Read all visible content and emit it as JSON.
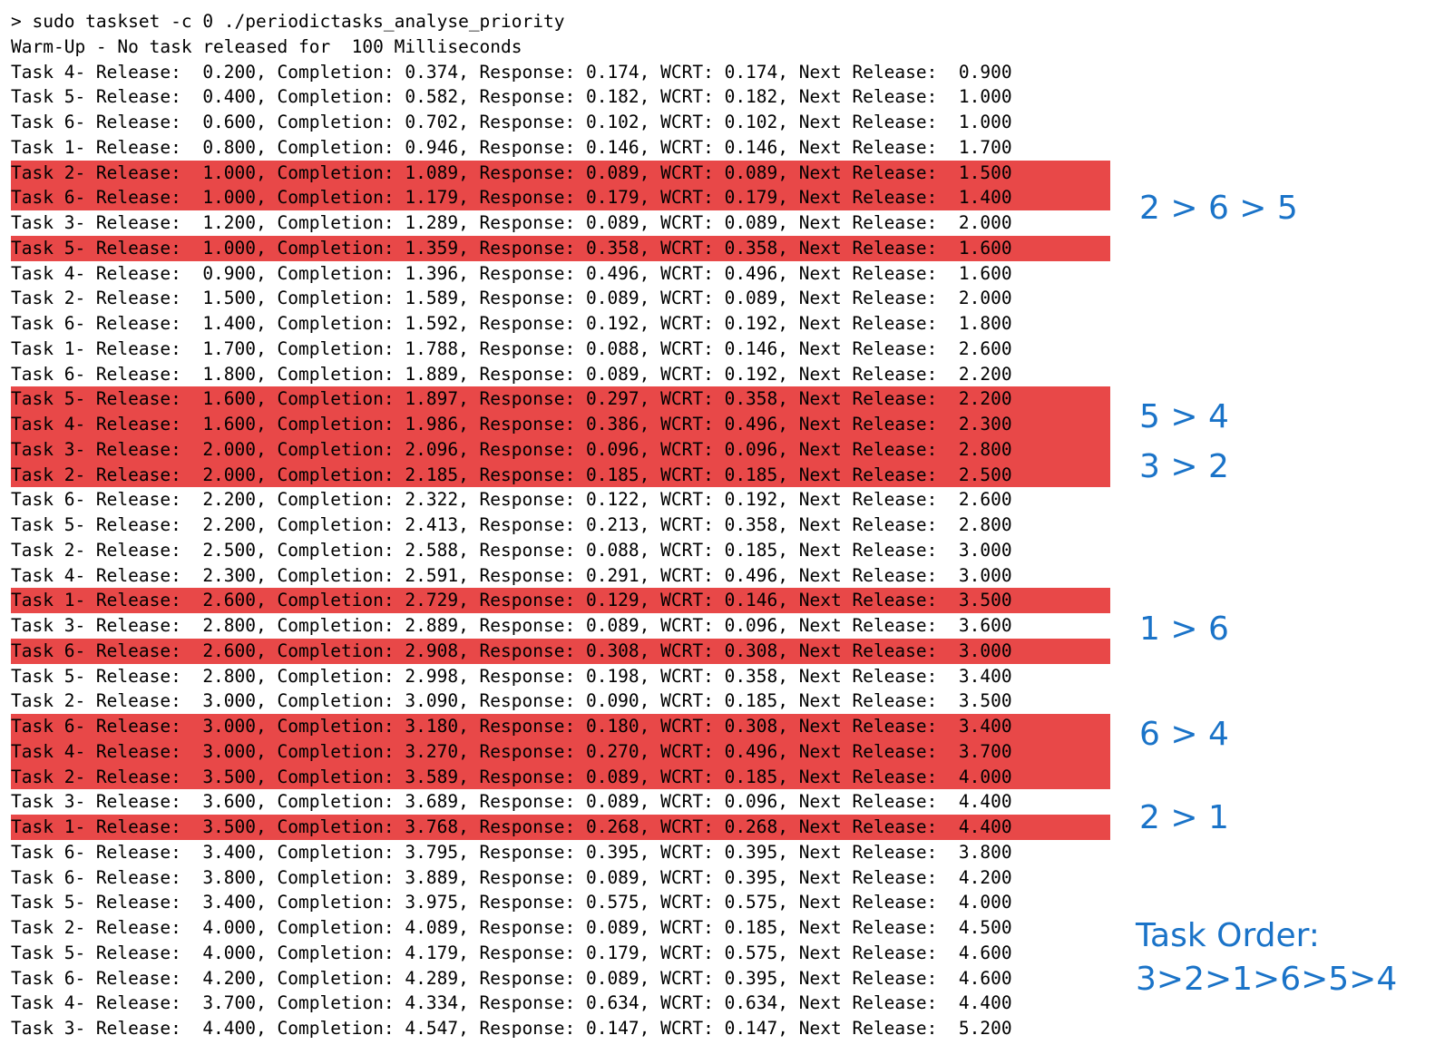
{
  "command": "> sudo taskset -c 0 ./periodictasks_analyse_priority",
  "warmup": "Warm-Up - No task released for  100 Milliseconds",
  "highlight_color": "#e84848",
  "annotation_color": "#1a73c8",
  "rows": [
    {
      "text": "Task 4- Release:  0.200, Completion: 0.374, Response: 0.174, WCRT: 0.174, Next Release:  0.900",
      "hl": false
    },
    {
      "text": "Task 5- Release:  0.400, Completion: 0.582, Response: 0.182, WCRT: 0.182, Next Release:  1.000",
      "hl": false
    },
    {
      "text": "Task 6- Release:  0.600, Completion: 0.702, Response: 0.102, WCRT: 0.102, Next Release:  1.000",
      "hl": false
    },
    {
      "text": "Task 1- Release:  0.800, Completion: 0.946, Response: 0.146, WCRT: 0.146, Next Release:  1.700",
      "hl": false
    },
    {
      "text": "Task 2- Release:  1.000, Completion: 1.089, Response: 0.089, WCRT: 0.089, Next Release:  1.500",
      "hl": true
    },
    {
      "text": "Task 6- Release:  1.000, Completion: 1.179, Response: 0.179, WCRT: 0.179, Next Release:  1.400",
      "hl": true
    },
    {
      "text": "Task 3- Release:  1.200, Completion: 1.289, Response: 0.089, WCRT: 0.089, Next Release:  2.000",
      "hl": false
    },
    {
      "text": "Task 5- Release:  1.000, Completion: 1.359, Response: 0.358, WCRT: 0.358, Next Release:  1.600",
      "hl": true
    },
    {
      "text": "Task 4- Release:  0.900, Completion: 1.396, Response: 0.496, WCRT: 0.496, Next Release:  1.600",
      "hl": false
    },
    {
      "text": "Task 2- Release:  1.500, Completion: 1.589, Response: 0.089, WCRT: 0.089, Next Release:  2.000",
      "hl": false
    },
    {
      "text": "Task 6- Release:  1.400, Completion: 1.592, Response: 0.192, WCRT: 0.192, Next Release:  1.800",
      "hl": false
    },
    {
      "text": "Task 1- Release:  1.700, Completion: 1.788, Response: 0.088, WCRT: 0.146, Next Release:  2.600",
      "hl": false
    },
    {
      "text": "Task 6- Release:  1.800, Completion: 1.889, Response: 0.089, WCRT: 0.192, Next Release:  2.200",
      "hl": false
    },
    {
      "text": "Task 5- Release:  1.600, Completion: 1.897, Response: 0.297, WCRT: 0.358, Next Release:  2.200",
      "hl": true
    },
    {
      "text": "Task 4- Release:  1.600, Completion: 1.986, Response: 0.386, WCRT: 0.496, Next Release:  2.300",
      "hl": true
    },
    {
      "text": "Task 3- Release:  2.000, Completion: 2.096, Response: 0.096, WCRT: 0.096, Next Release:  2.800",
      "hl": true
    },
    {
      "text": "Task 2- Release:  2.000, Completion: 2.185, Response: 0.185, WCRT: 0.185, Next Release:  2.500",
      "hl": true
    },
    {
      "text": "Task 6- Release:  2.200, Completion: 2.322, Response: 0.122, WCRT: 0.192, Next Release:  2.600",
      "hl": false
    },
    {
      "text": "Task 5- Release:  2.200, Completion: 2.413, Response: 0.213, WCRT: 0.358, Next Release:  2.800",
      "hl": false
    },
    {
      "text": "Task 2- Release:  2.500, Completion: 2.588, Response: 0.088, WCRT: 0.185, Next Release:  3.000",
      "hl": false
    },
    {
      "text": "Task 4- Release:  2.300, Completion: 2.591, Response: 0.291, WCRT: 0.496, Next Release:  3.000",
      "hl": false
    },
    {
      "text": "Task 1- Release:  2.600, Completion: 2.729, Response: 0.129, WCRT: 0.146, Next Release:  3.500",
      "hl": true
    },
    {
      "text": "Task 3- Release:  2.800, Completion: 2.889, Response: 0.089, WCRT: 0.096, Next Release:  3.600",
      "hl": false
    },
    {
      "text": "Task 6- Release:  2.600, Completion: 2.908, Response: 0.308, WCRT: 0.308, Next Release:  3.000",
      "hl": true
    },
    {
      "text": "Task 5- Release:  2.800, Completion: 2.998, Response: 0.198, WCRT: 0.358, Next Release:  3.400",
      "hl": false
    },
    {
      "text": "Task 2- Release:  3.000, Completion: 3.090, Response: 0.090, WCRT: 0.185, Next Release:  3.500",
      "hl": false
    },
    {
      "text": "Task 6- Release:  3.000, Completion: 3.180, Response: 0.180, WCRT: 0.308, Next Release:  3.400",
      "hl": true
    },
    {
      "text": "Task 4- Release:  3.000, Completion: 3.270, Response: 0.270, WCRT: 0.496, Next Release:  3.700",
      "hl": true
    },
    {
      "text": "Task 2- Release:  3.500, Completion: 3.589, Response: 0.089, WCRT: 0.185, Next Release:  4.000",
      "hl": true
    },
    {
      "text": "Task 3- Release:  3.600, Completion: 3.689, Response: 0.089, WCRT: 0.096, Next Release:  4.400",
      "hl": false
    },
    {
      "text": "Task 1- Release:  3.500, Completion: 3.768, Response: 0.268, WCRT: 0.268, Next Release:  4.400",
      "hl": true
    },
    {
      "text": "Task 6- Release:  3.400, Completion: 3.795, Response: 0.395, WCRT: 0.395, Next Release:  3.800",
      "hl": false
    },
    {
      "text": "Task 6- Release:  3.800, Completion: 3.889, Response: 0.089, WCRT: 0.395, Next Release:  4.200",
      "hl": false
    },
    {
      "text": "Task 5- Release:  3.400, Completion: 3.975, Response: 0.575, WCRT: 0.575, Next Release:  4.000",
      "hl": false
    },
    {
      "text": "Task 2- Release:  4.000, Completion: 4.089, Response: 0.089, WCRT: 0.185, Next Release:  4.500",
      "hl": false
    },
    {
      "text": "Task 5- Release:  4.000, Completion: 4.179, Response: 0.179, WCRT: 0.575, Next Release:  4.600",
      "hl": false
    },
    {
      "text": "Task 6- Release:  4.200, Completion: 4.289, Response: 0.089, WCRT: 0.395, Next Release:  4.600",
      "hl": false
    },
    {
      "text": "Task 4- Release:  3.700, Completion: 4.334, Response: 0.634, WCRT: 0.634, Next Release:  4.400",
      "hl": false
    },
    {
      "text": "Task 3- Release:  4.400, Completion: 4.547, Response: 0.147, WCRT: 0.147, Next Release:  5.200",
      "hl": false
    }
  ],
  "annotations": {
    "a1": "2 > 6 > 5",
    "a2": "5 > 4",
    "a3": "3 > 2",
    "a4": "1 > 6",
    "a5": "6 > 4",
    "a6": "2 > 1",
    "order_label": "Task Order:",
    "order_value": "3>2>1>6>5>4"
  }
}
